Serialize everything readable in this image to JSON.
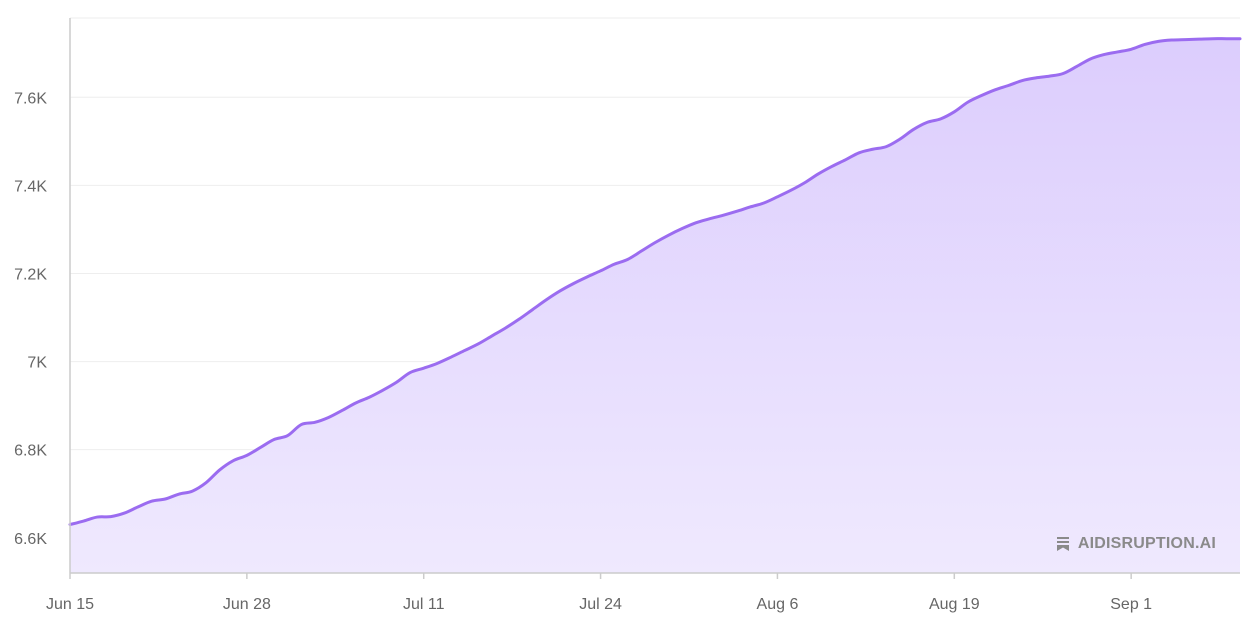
{
  "chart_data": {
    "type": "area",
    "x_ticks": [
      "Jun 15",
      "Jun 28",
      "Jul 11",
      "Jul 24",
      "Aug 6",
      "Aug 19",
      "Sep 1"
    ],
    "y_ticks": [
      "6.6K",
      "6.8K",
      "7K",
      "7.2K",
      "7.4K",
      "7.6K"
    ],
    "ylim": [
      6520,
      7780
    ],
    "grid": true,
    "colors": {
      "line": "#9b6cf0",
      "fill_top": "#dccdfd",
      "fill_bottom": "#efe9fe",
      "grid": "#eeeeee",
      "axis": "#cccccc"
    },
    "x": [
      "Jun 15",
      "Jun 16",
      "Jun 17",
      "Jun 18",
      "Jun 19",
      "Jun 20",
      "Jun 21",
      "Jun 22",
      "Jun 23",
      "Jun 24",
      "Jun 25",
      "Jun 26",
      "Jun 27",
      "Jun 28",
      "Jun 29",
      "Jun 30",
      "Jul 1",
      "Jul 2",
      "Jul 3",
      "Jul 4",
      "Jul 5",
      "Jul 6",
      "Jul 7",
      "Jul 8",
      "Jul 9",
      "Jul 10",
      "Jul 11",
      "Jul 12",
      "Jul 13",
      "Jul 14",
      "Jul 15",
      "Jul 16",
      "Jul 17",
      "Jul 18",
      "Jul 19",
      "Jul 20",
      "Jul 21",
      "Jul 22",
      "Jul 23",
      "Jul 24",
      "Jul 25",
      "Jul 26",
      "Jul 27",
      "Jul 28",
      "Jul 29",
      "Jul 30",
      "Jul 31",
      "Aug 1",
      "Aug 2",
      "Aug 3",
      "Aug 4",
      "Aug 5",
      "Aug 6",
      "Aug 7",
      "Aug 8",
      "Aug 9",
      "Aug 10",
      "Aug 11",
      "Aug 12",
      "Aug 13",
      "Aug 14",
      "Aug 15",
      "Aug 16",
      "Aug 17",
      "Aug 18",
      "Aug 19",
      "Aug 20",
      "Aug 21",
      "Aug 22",
      "Aug 23",
      "Aug 24",
      "Aug 25",
      "Aug 26",
      "Aug 27",
      "Aug 28",
      "Aug 29",
      "Aug 30",
      "Aug 31",
      "Sep 1",
      "Sep 2",
      "Sep 3",
      "Sep 4",
      "Sep 5",
      "Sep 6",
      "Sep 7",
      "Sep 8",
      "Sep 9"
    ],
    "values": [
      6630,
      6638,
      6647,
      6648,
      6656,
      6670,
      6683,
      6688,
      6699,
      6706,
      6725,
      6754,
      6775,
      6787,
      6805,
      6823,
      6832,
      6857,
      6862,
      6873,
      6889,
      6906,
      6919,
      6935,
      6953,
      6975,
      6985,
      6996,
      7010,
      7025,
      7040,
      7058,
      7076,
      7096,
      7118,
      7140,
      7160,
      7177,
      7192,
      7206,
      7221,
      7232,
      7251,
      7270,
      7287,
      7302,
      7315,
      7324,
      7332,
      7341,
      7351,
      7360,
      7374,
      7389,
      7406,
      7426,
      7443,
      7458,
      7474,
      7482,
      7488,
      7505,
      7527,
      7543,
      7551,
      7567,
      7589,
      7604,
      7617,
      7627,
      7638,
      7644,
      7648,
      7654,
      7670,
      7687,
      7697,
      7703,
      7709,
      7720,
      7727,
      7730,
      7731,
      7732,
      7733,
      7733,
      7733
    ]
  },
  "watermark": {
    "text": "AIDISRUPTION.AI",
    "icon": "bookmark-icon"
  }
}
